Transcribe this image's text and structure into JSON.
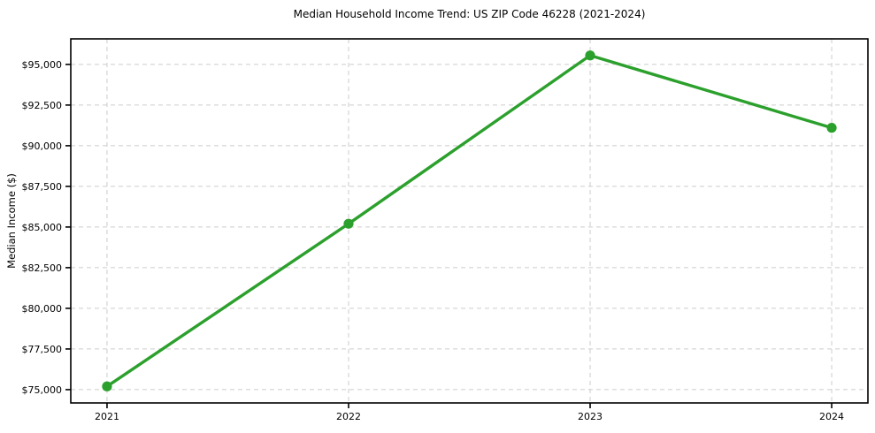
{
  "figure": {
    "title": "Median Household Income Trend: US ZIP Code 46228 (2021-2024)",
    "y_axis_label": "Median Income ($)"
  },
  "chart_data": {
    "type": "line",
    "title": "Median Household Income Trend: US ZIP Code 46228 (2021-2024)",
    "xlabel": "",
    "ylabel": "Median Income ($)",
    "x": [
      2021,
      2022,
      2023,
      2024
    ],
    "values": [
      75200,
      85200,
      95550,
      91100
    ],
    "xtick_labels": [
      "2021",
      "2022",
      "2023",
      "2024"
    ],
    "ytick_values": [
      75000,
      77500,
      80000,
      82500,
      85000,
      87500,
      90000,
      92500,
      95000
    ],
    "ytick_labels": [
      "$75,000",
      "$77,500",
      "$80,000",
      "$82,500",
      "$85,000",
      "$87,500",
      "$90,000",
      "$92,500",
      "$95,000"
    ],
    "xlim": [
      2020.85,
      2024.15
    ],
    "ylim": [
      74180,
      96570
    ],
    "grid": true,
    "grid_style": "dashed",
    "legend": false,
    "marker": "circle",
    "colors": {
      "line": "#2ca02c",
      "marker": "#2ca02c",
      "grid": "#cccccc",
      "axis": "#000000",
      "text": "#000000",
      "background": "#ffffff"
    }
  }
}
